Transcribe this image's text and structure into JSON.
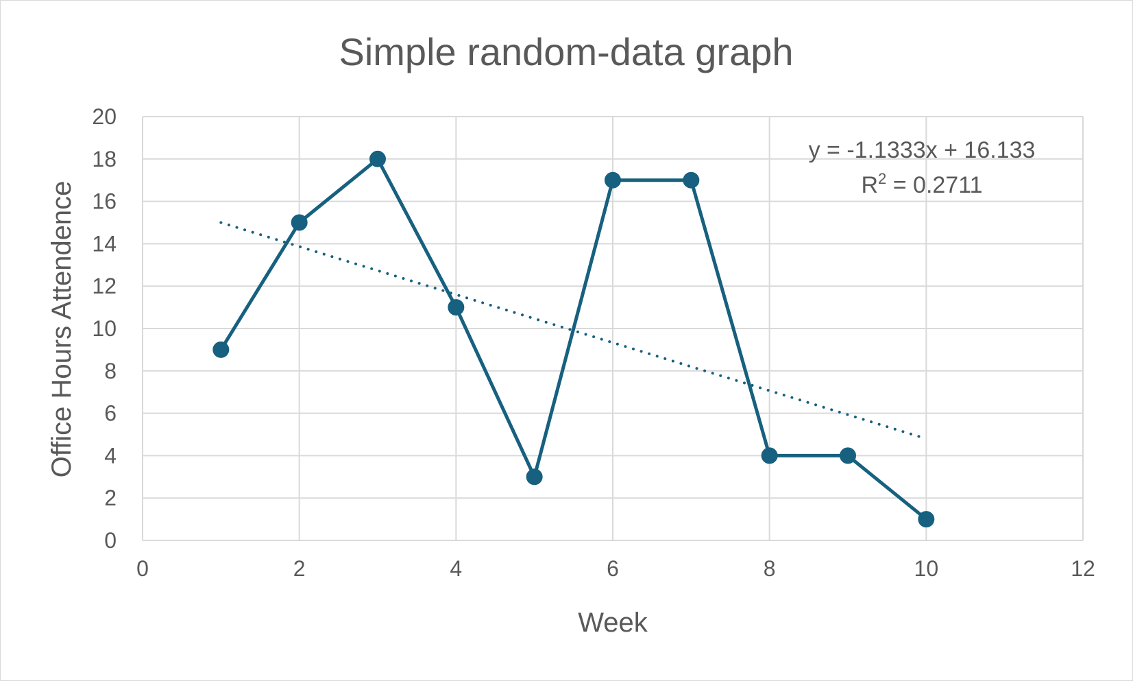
{
  "chart_data": {
    "type": "scatter",
    "title": "Simple random-data graph",
    "xlabel": "Week",
    "ylabel": "Office Hours Attendence",
    "xlim": [
      0,
      12
    ],
    "ylim": [
      0,
      20
    ],
    "x_ticks": [
      0,
      2,
      4,
      6,
      8,
      10,
      12
    ],
    "y_ticks": [
      0,
      2,
      4,
      6,
      8,
      10,
      12,
      14,
      16,
      18,
      20
    ],
    "grid": true,
    "series": [
      {
        "style": "line-with-markers",
        "color": "#17607f",
        "x": [
          1,
          2,
          3,
          4,
          5,
          6,
          7,
          8,
          9,
          10
        ],
        "y": [
          9,
          15,
          18,
          11,
          3,
          17,
          17,
          4,
          4,
          1
        ]
      }
    ],
    "trendline": {
      "type": "linear",
      "style": "dotted",
      "color": "#17607f",
      "slope": -1.1333,
      "intercept": 16.133,
      "x_range": [
        1,
        10
      ],
      "equation": "y = -1.1333x + 16.133",
      "r2_prefix": "R",
      "r2_exponent": "2",
      "r2_value": " = 0.2711"
    }
  }
}
